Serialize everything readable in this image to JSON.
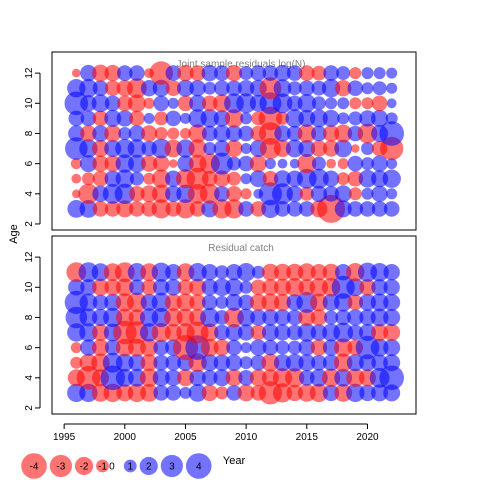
{
  "chart_data": [
    {
      "type": "bubble",
      "title": "Joint sample residuals log(N)",
      "xlim": [
        1994,
        2024
      ],
      "ylim": [
        1.6,
        13.4
      ],
      "xticks": [
        1995,
        2000,
        2005,
        2010,
        2015,
        2020
      ],
      "yticks": [
        2,
        4,
        6,
        8,
        10,
        12
      ],
      "x": [
        1996,
        1997,
        1998,
        1999,
        2000,
        2001,
        2002,
        2003,
        2004,
        2005,
        2006,
        2007,
        2008,
        2009,
        2010,
        2011,
        2012,
        2013,
        2014,
        2015,
        2016,
        2017,
        2018,
        2019,
        2020,
        2021,
        2022
      ],
      "y": [
        3,
        4,
        5,
        6,
        7,
        8,
        9,
        10,
        11,
        12
      ],
      "grid": false,
      "colors": {
        "positive": "#0000FF",
        "negative": "#FF0000"
      },
      "values": [
        [
          1.3,
          1.3,
          -1.0,
          -1.0,
          -1.2,
          -1.0,
          -1.0,
          -1.5,
          -1.0,
          -1.5,
          -1.0,
          1.2,
          -1.5,
          -1.5,
          1.0,
          -1.0,
          1.4,
          1.0,
          1.0,
          1.0,
          -1.2,
          -3.2,
          1.2,
          1.0,
          1.0,
          1.0,
          1.0
        ],
        [
          -0.3,
          -1.7,
          1.1,
          1.6,
          1.7,
          -1.0,
          -1.2,
          -1.4,
          1.1,
          1.4,
          -1.6,
          -1.6,
          1.0,
          -1.0,
          -0.5,
          0.4,
          2.2,
          1.8,
          1.1,
          -0.8,
          1.1,
          1.0,
          1.2,
          -0.7,
          0.6,
          1.1,
          0.5
        ],
        [
          -0.4,
          -0.7,
          -1.0,
          1.1,
          1.4,
          0.8,
          -0.6,
          -1.4,
          1.1,
          -1.5,
          -2.0,
          -1.0,
          -1.1,
          -0.8,
          0.5,
          1.2,
          -1.0,
          1.2,
          1.1,
          1.6,
          1.6,
          1.1,
          -0.7,
          -1.0,
          1.3,
          1.2,
          1.4
        ],
        [
          -0.5,
          1.2,
          -1.1,
          -1.1,
          1.4,
          1.3,
          -1.1,
          -1.1,
          -0.3,
          1.1,
          -1.3,
          -1.7,
          2.0,
          0.8,
          1.0,
          -1.2,
          0.5,
          0.4,
          0.4,
          -1.5,
          0.8,
          -0.4,
          -0.5,
          1.0,
          0.7,
          1.1,
          0.5
        ],
        [
          2.1,
          1.4,
          -1.2,
          1.2,
          1.5,
          1.4,
          1.0,
          1.6,
          -1.3,
          1.4,
          -1.4,
          0.7,
          1.1,
          -1.2,
          0.5,
          1.2,
          -1.8,
          -1.2,
          1.3,
          1.2,
          -1.1,
          -1.1,
          1.3,
          -0.3,
          0.7,
          -1.0,
          -2.2
        ],
        [
          1.1,
          -1.1,
          1.1,
          -1.2,
          0.7,
          1.1,
          -1.1,
          -0.7,
          -0.6,
          -0.5,
          -1.4,
          1.0,
          1.2,
          1.1,
          1.0,
          -1.0,
          -2.1,
          1.1,
          1.0,
          -1.4,
          1.0,
          -1.1,
          -1.3,
          1.0,
          -1.6,
          1.2,
          2.5
        ],
        [
          1.0,
          1.0,
          -1.0,
          1.2,
          1.1,
          -1.0,
          0.5,
          -0.8,
          1.0,
          0.5,
          1.4,
          1.4,
          1.1,
          -1.4,
          0.6,
          -0.8,
          -2.3,
          -0.7,
          1.4,
          1.2,
          1.3,
          1.2,
          0.6,
          0.8,
          1.1,
          1.2,
          0.6
        ],
        [
          2.3,
          1.1,
          1.3,
          1.0,
          -1.0,
          -1.3,
          -0.5,
          1.0,
          0.5,
          -1.0,
          1.2,
          -1.0,
          -1.3,
          1.6,
          1.6,
          1.2,
          2.0,
          1.6,
          1.0,
          1.4,
          0.8,
          0.6,
          0.6,
          -0.6,
          -0.6,
          -1.0,
          0.4
        ],
        [
          1.4,
          1.4,
          1.0,
          -1.0,
          -1.1,
          -1.6,
          1.1,
          1.2,
          -1.0,
          1.2,
          1.1,
          0.7,
          1.0,
          1.0,
          1.1,
          1.2,
          -2.0,
          1.3,
          0.8,
          1.0,
          0.9,
          1.4,
          -1.1,
          1.0,
          0.6,
          0.8,
          0.5
        ],
        [
          -0.3,
          1.1,
          -1.2,
          -1.1,
          1.0,
          1.0,
          -0.4,
          -2.3,
          1.0,
          -1.1,
          -1.0,
          1.1,
          1.0,
          -1.1,
          0.8,
          1.0,
          1.0,
          1.1,
          1.0,
          -1.0,
          -0.9,
          1.0,
          0.8,
          -0.6,
          0.6,
          0.6,
          0.5
        ]
      ]
    },
    {
      "type": "bubble",
      "title": "Residual catch",
      "xlim": [
        1994,
        2024
      ],
      "ylim": [
        1.6,
        13.4
      ],
      "xticks": [
        1995,
        2000,
        2005,
        2010,
        2015,
        2020
      ],
      "yticks": [
        2,
        4,
        6,
        8,
        10,
        12
      ],
      "x": [
        1996,
        1997,
        1998,
        1999,
        2000,
        2001,
        2002,
        2003,
        2004,
        2005,
        2006,
        2007,
        2008,
        2009,
        2010,
        2011,
        2012,
        2013,
        2014,
        2015,
        2016,
        2017,
        2018,
        2019,
        2020,
        2021,
        2022
      ],
      "y": [
        3,
        4,
        5,
        6,
        7,
        8,
        9,
        10,
        11
      ],
      "grid": false,
      "colors": {
        "positive": "#0000FF",
        "negative": "#FF0000"
      },
      "values": [
        [
          1.4,
          1.4,
          -1.3,
          -1.4,
          -1.2,
          -1.4,
          -1.3,
          1.0,
          1.0,
          0.6,
          1.3,
          -1.1,
          -0.7,
          1.0,
          -1.2,
          -1.0,
          -2.2,
          -1.5,
          -1.1,
          -1.3,
          -1.4,
          1.1,
          -1.3,
          1.4,
          1.1,
          1.2,
          1.2
        ],
        [
          -1.2,
          -2.3,
          -1.2,
          2.5,
          1.3,
          1.3,
          -1.4,
          1.2,
          1.1,
          -1.2,
          1.1,
          1.0,
          1.2,
          -1.2,
          1.0,
          -1.2,
          -1.2,
          -1.5,
          -1.5,
          1.0,
          1.3,
          -1.4,
          1.3,
          -1.4,
          -1.2,
          1.6,
          2.5
        ],
        [
          -0.6,
          -1.3,
          -1.4,
          1.6,
          1.3,
          1.2,
          -1.2,
          1.0,
          1.0,
          1.1,
          -1.4,
          1.2,
          1.1,
          1.1,
          0.7,
          1.0,
          -1.3,
          1.2,
          1.3,
          1.2,
          1.0,
          1.1,
          -1.4,
          1.2,
          1.2,
          1.1,
          1.2
        ],
        [
          -0.5,
          1.1,
          -1.2,
          1.0,
          -1.3,
          -1.3,
          -1.3,
          1.0,
          1.1,
          -2.6,
          2.5,
          -1.3,
          -1.1,
          1.0,
          0.5,
          1.1,
          1.0,
          0.8,
          0.8,
          1.1,
          -1.1,
          1.1,
          -1.4,
          -1.0,
          2.3,
          1.3,
          1.2
        ],
        [
          1.4,
          1.4,
          -1.2,
          1.3,
          -2.3,
          -2.1,
          1.4,
          -1.5,
          -1.2,
          -1.4,
          -2.0,
          -1.3,
          1.0,
          1.2,
          1.1,
          -1.0,
          1.2,
          1.1,
          1.0,
          1.4,
          1.1,
          1.3,
          1.6,
          1.0,
          1.2,
          -1.2,
          -1.2
        ],
        [
          1.9,
          1.3,
          1.2,
          1.5,
          -1.3,
          -1.1,
          1.4,
          1.5,
          -1.4,
          -1.3,
          -1.2,
          1.5,
          0.9,
          -1.6,
          1.3,
          1.1,
          1.1,
          1.1,
          1.0,
          -1.2,
          -1.1,
          0.8,
          1.0,
          1.1,
          1.1,
          1.3,
          1.2
        ],
        [
          2.2,
          1.3,
          1.0,
          1.2,
          -1.4,
          -1.6,
          1.2,
          1.5,
          -1.2,
          -1.3,
          -1.1,
          1.0,
          0.7,
          1.2,
          1.0,
          -1.2,
          -1.3,
          -1.2,
          1.1,
          1.8,
          -1.3,
          1.2,
          1.4,
          -1.0,
          1.2,
          1.3,
          1.2
        ],
        [
          1.1,
          1.1,
          -1.2,
          -1.1,
          -1.3,
          1.0,
          -1.0,
          1.1,
          1.1,
          -1.0,
          -1.2,
          1.1,
          1.3,
          1.3,
          0.7,
          -1.0,
          -1.1,
          -1.2,
          -1.4,
          -1.1,
          -1.4,
          -1.4,
          2.2,
          1.3,
          -1.1,
          1.1,
          1.1
        ],
        [
          -1.6,
          1.6,
          1.3,
          -1.3,
          -1.6,
          1.4,
          -1.3,
          1.5,
          1.1,
          -1.3,
          1.4,
          1.1,
          0.8,
          1.1,
          1.4,
          0.7,
          -1.2,
          -1.2,
          -1.2,
          -1.3,
          -1.1,
          -1.2,
          1.1,
          -1.4,
          1.5,
          1.4,
          1.1
        ]
      ]
    }
  ],
  "axes": {
    "xlabel": "Year",
    "ylabel": "Age"
  },
  "legend": {
    "labels": [
      "-4",
      "-3",
      "-2",
      "-1",
      "0",
      "1",
      "2",
      "3",
      "4"
    ],
    "values": [
      -4,
      -3,
      -2,
      -1,
      0,
      1,
      2,
      3,
      4
    ]
  }
}
